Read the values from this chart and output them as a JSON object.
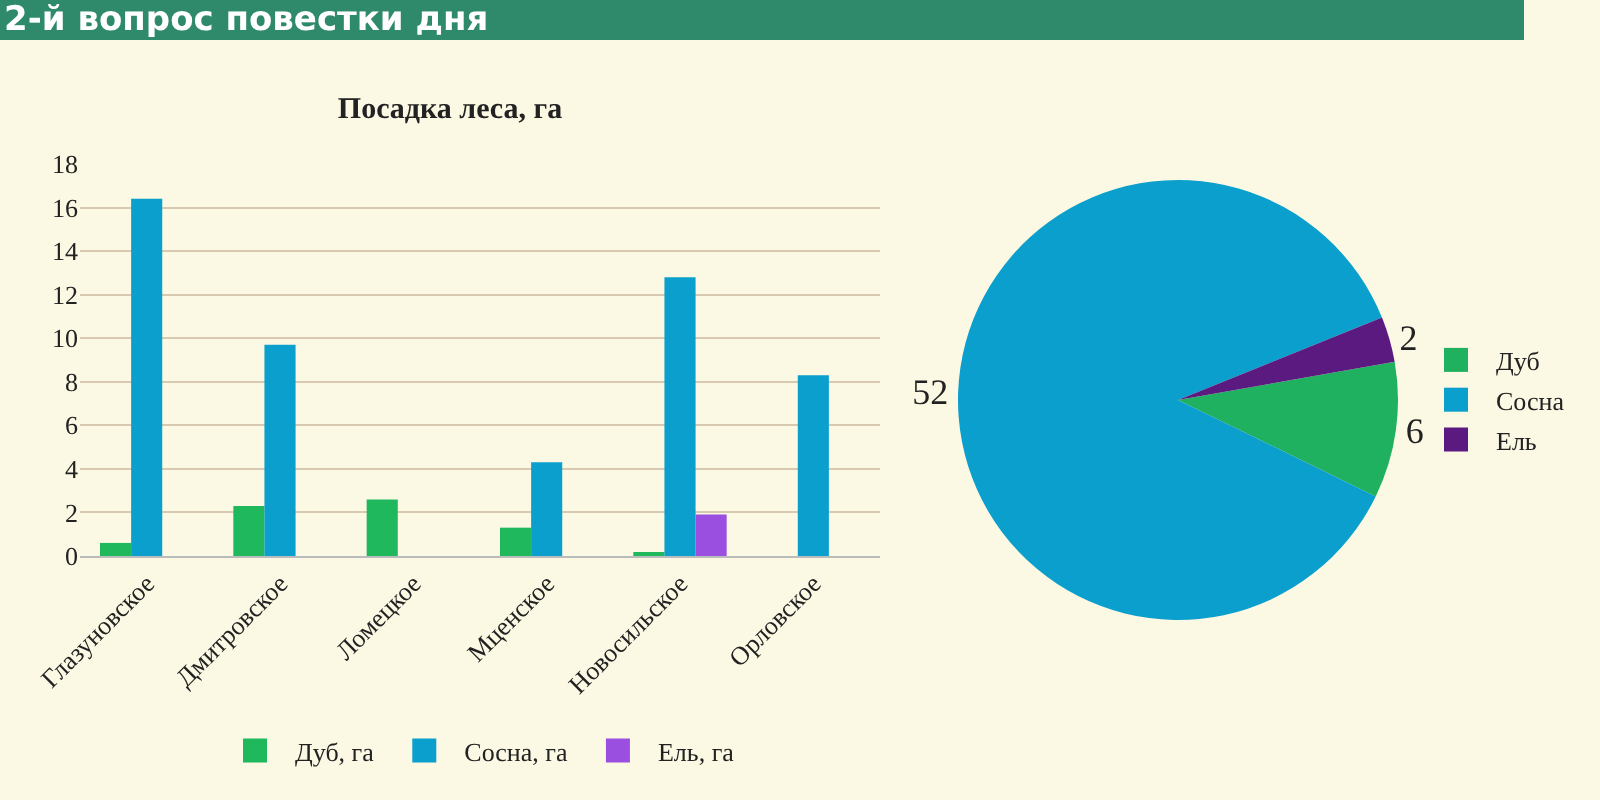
{
  "chart_data": [
    {
      "type": "bar",
      "title": "Посадка леса, га",
      "annotations": [
        "2-й вопрос повестки дня"
      ],
      "categories": [
        "Глазуновское",
        "Дмитровское",
        "Ломецкое",
        "Мценское",
        "Новосильское",
        "Орловское"
      ],
      "series": [
        {
          "name": "Дуб, га",
          "color": "#1fb85c",
          "values": [
            0.6,
            2.3,
            2.6,
            1.3,
            0.1,
            0
          ]
        },
        {
          "name": "Сосна, га",
          "color": "#0a9fcc",
          "values": [
            16.4,
            9.7,
            0,
            4.3,
            12.8,
            8.3
          ]
        },
        {
          "name": "Ель, га",
          "color": "#9b4fe0",
          "values": [
            0,
            0,
            0,
            0,
            1.9,
            0
          ]
        }
      ],
      "ylim": [
        0,
        18
      ],
      "yticks": [
        0,
        2,
        4,
        6,
        8,
        10,
        12,
        14,
        16,
        18
      ],
      "grid": "y",
      "legend": "bottom"
    },
    {
      "type": "pie",
      "categories": [
        "Дуб",
        "Сосна",
        "Ель"
      ],
      "values": [
        6,
        52,
        2
      ],
      "colors": [
        "#1fb060",
        "#0a9fcc",
        "#5a1a80"
      ],
      "data_labels": true,
      "legend": "right"
    }
  ]
}
